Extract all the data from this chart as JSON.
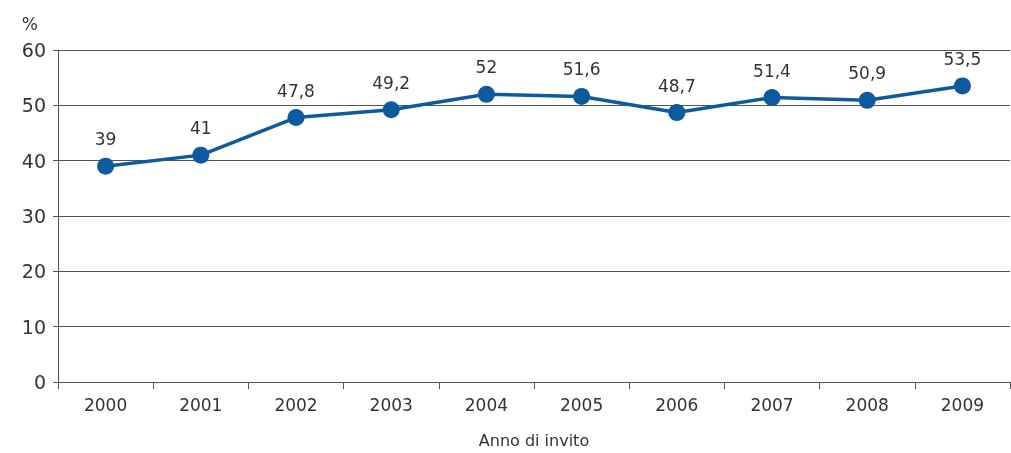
{
  "chart_data": {
    "type": "line",
    "xlabel": "Anno di invito",
    "ylabel": "%",
    "categories": [
      "2000",
      "2001",
      "2002",
      "2003",
      "2004",
      "2005",
      "2006",
      "2007",
      "2008",
      "2009"
    ],
    "series": [
      {
        "color": "#0e5a9e",
        "values": [
          39,
          41,
          47.8,
          49.2,
          52,
          51.6,
          48.7,
          51.4,
          50.9,
          53.5
        ],
        "value_labels": [
          "39",
          "41",
          "47,8",
          "49,2",
          "52",
          "51,6",
          "48,7",
          "51,4",
          "50,9",
          "53,5"
        ]
      }
    ],
    "ylim": [
      0,
      60
    ],
    "yticks": [
      0,
      10,
      20,
      30,
      40,
      50,
      60
    ],
    "grid": "y",
    "marker": "circle",
    "line_style": "solid"
  }
}
